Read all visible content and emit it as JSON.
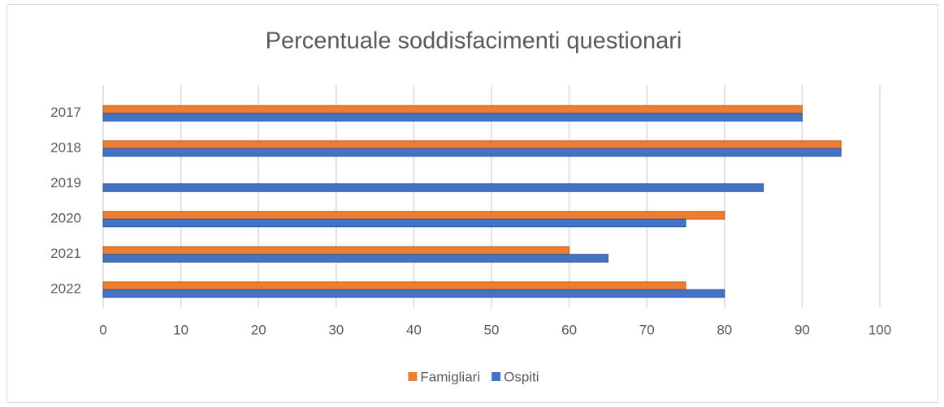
{
  "chart_data": {
    "type": "hbar",
    "title": "Percentuale soddisfacimenti questionari",
    "categories": [
      "2017",
      "2018",
      "2019",
      "2020",
      "2021",
      "2022"
    ],
    "series": [
      {
        "name": "Famigliari",
        "color": "#ed7d31",
        "values": [
          90,
          95,
          0,
          80,
          60,
          75
        ]
      },
      {
        "name": "Ospiti",
        "color": "#4472c4",
        "values": [
          90,
          95,
          85,
          75,
          65,
          80
        ]
      }
    ],
    "xlim": [
      0,
      100
    ],
    "xticks": [
      0,
      10,
      20,
      30,
      40,
      50,
      60,
      70,
      80,
      90,
      100
    ],
    "grid": true,
    "legend": "bottom"
  }
}
